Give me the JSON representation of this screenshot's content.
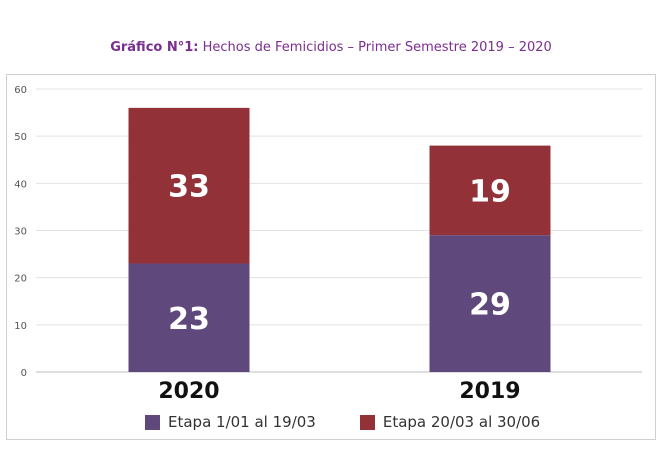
{
  "title": {
    "prefix": "Gráfico N°1:",
    "text": "Hechos de Femicidios – Primer Semestre 2019 – 2020"
  },
  "chart_data": {
    "type": "bar",
    "stacked": true,
    "categories": [
      "2020",
      "2019"
    ],
    "series": [
      {
        "name": "Etapa 1/01 al 19/03",
        "values": [
          23,
          29
        ],
        "color": "#5f487b"
      },
      {
        "name": "Etapa 20/03 al 30/06",
        "values": [
          33,
          19
        ],
        "color": "#923238"
      }
    ],
    "ylim": [
      0,
      60
    ],
    "yticks": [
      "0",
      "10",
      "20",
      "30",
      "40",
      "50",
      "60"
    ],
    "grid": true,
    "legend": "bottom"
  }
}
